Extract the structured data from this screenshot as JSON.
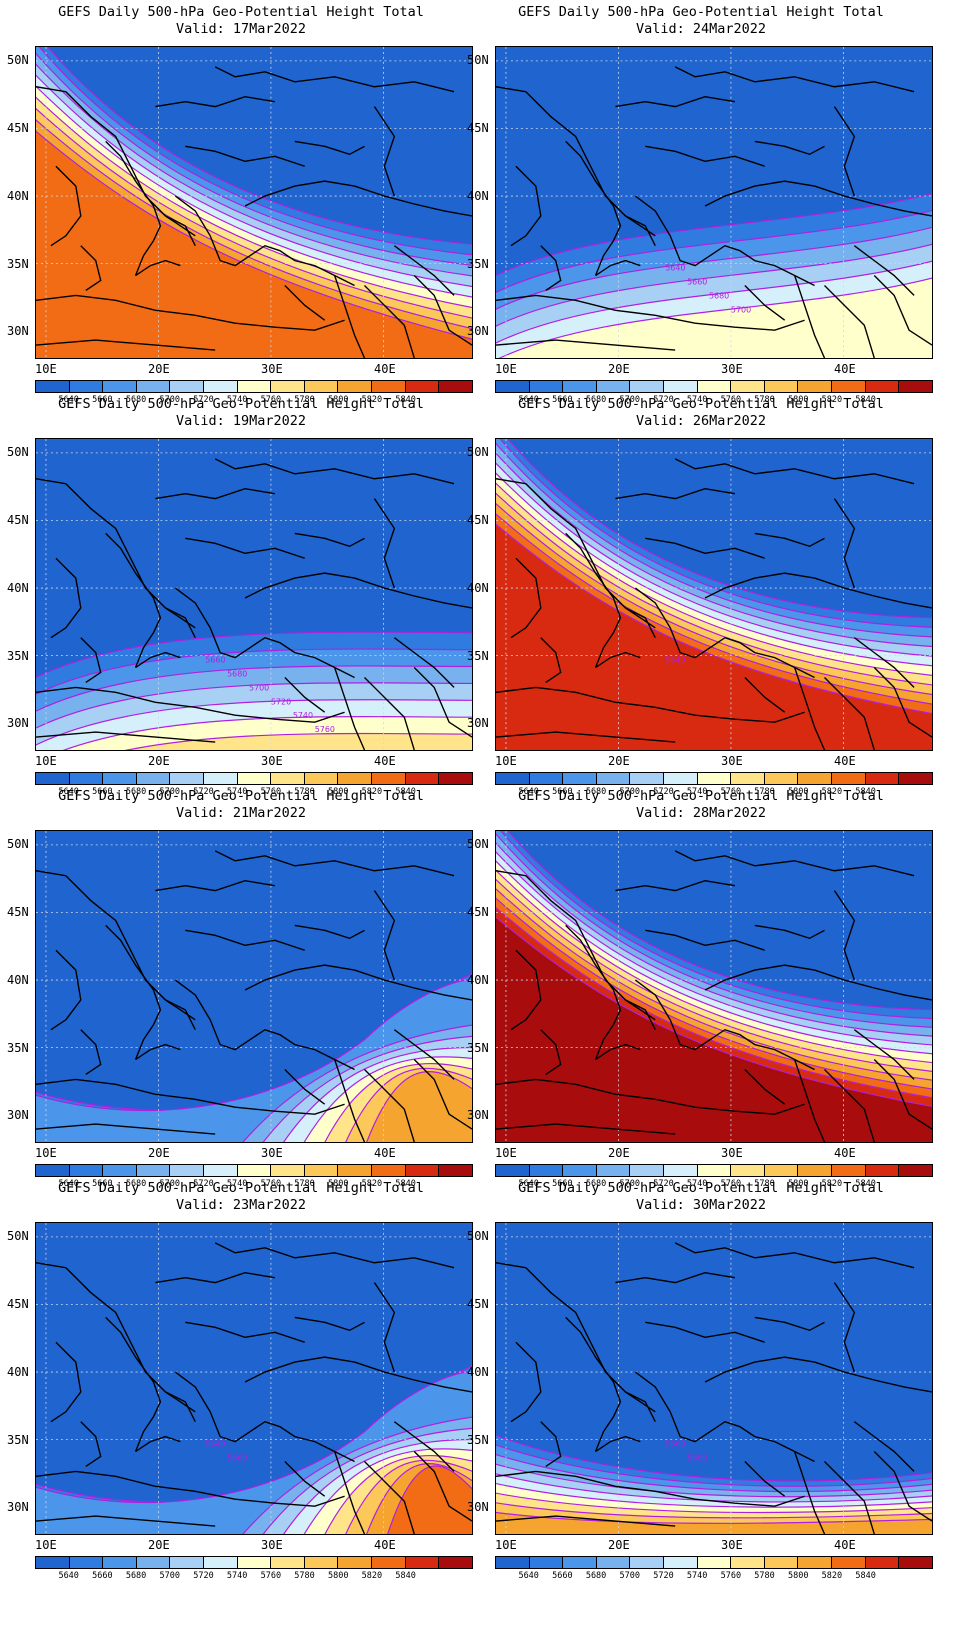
{
  "palette": [
    "#1f64cf",
    "#2f7be0",
    "#4b95ea",
    "#78b2ee",
    "#a8d0f4",
    "#d6f0fb",
    "#ffffcc",
    "#ffe48a",
    "#fcc85a",
    "#f6a430",
    "#f26b15",
    "#d82a10",
    "#a80c0c"
  ],
  "colorbar_labels": [
    "5640",
    "5660",
    "5680",
    "5700",
    "5720",
    "5740",
    "5760",
    "5780",
    "5800",
    "5820",
    "5840"
  ],
  "y_ticks": [
    "50N",
    "45N",
    "40N",
    "35N",
    "30N"
  ],
  "x_ticks": [
    "10E",
    "20E",
    "30E",
    "40E"
  ],
  "contour_color": "#b020e0",
  "panels": [
    {
      "title": "GEFS Daily 500-hPa Geo-Potential Height Total",
      "valid": "Valid: 17Mar2022",
      "style": "ridge-w",
      "labels": []
    },
    {
      "title": "GEFS Daily 500-hPa Geo-Potential Height Total",
      "valid": "Valid: 24Mar2022",
      "style": "zonal",
      "labels": [
        "5640",
        "5660",
        "5680",
        "5700"
      ]
    },
    {
      "title": "GEFS Daily 500-hPa Geo-Potential Height Total",
      "valid": "Valid: 19Mar2022",
      "style": "zonal2",
      "labels": [
        "5660",
        "5680",
        "5700",
        "5720",
        "5740",
        "5760"
      ]
    },
    {
      "title": "GEFS Daily 500-hPa Geo-Potential Height Total",
      "valid": "Valid: 26Mar2022",
      "style": "ridge-sw",
      "labels": [
        "5640"
      ]
    },
    {
      "title": "GEFS Daily 500-hPa Geo-Potential Height Total",
      "valid": "Valid: 21Mar2022",
      "style": "se",
      "labels": []
    },
    {
      "title": "GEFS Daily 500-hPa Geo-Potential Height Total",
      "valid": "Valid: 28Mar2022",
      "style": "ridge-strong",
      "labels": []
    },
    {
      "title": "GEFS Daily 500-hPa Geo-Potential Height Total",
      "valid": "Valid: 23Mar2022",
      "style": "se2",
      "labels": [
        "5640",
        "5660"
      ]
    },
    {
      "title": "GEFS Daily 500-hPa Geo-Potential Height Total",
      "valid": "Valid: 30Mar2022",
      "style": "trough",
      "labels": [
        "5660",
        "5680"
      ]
    }
  ]
}
